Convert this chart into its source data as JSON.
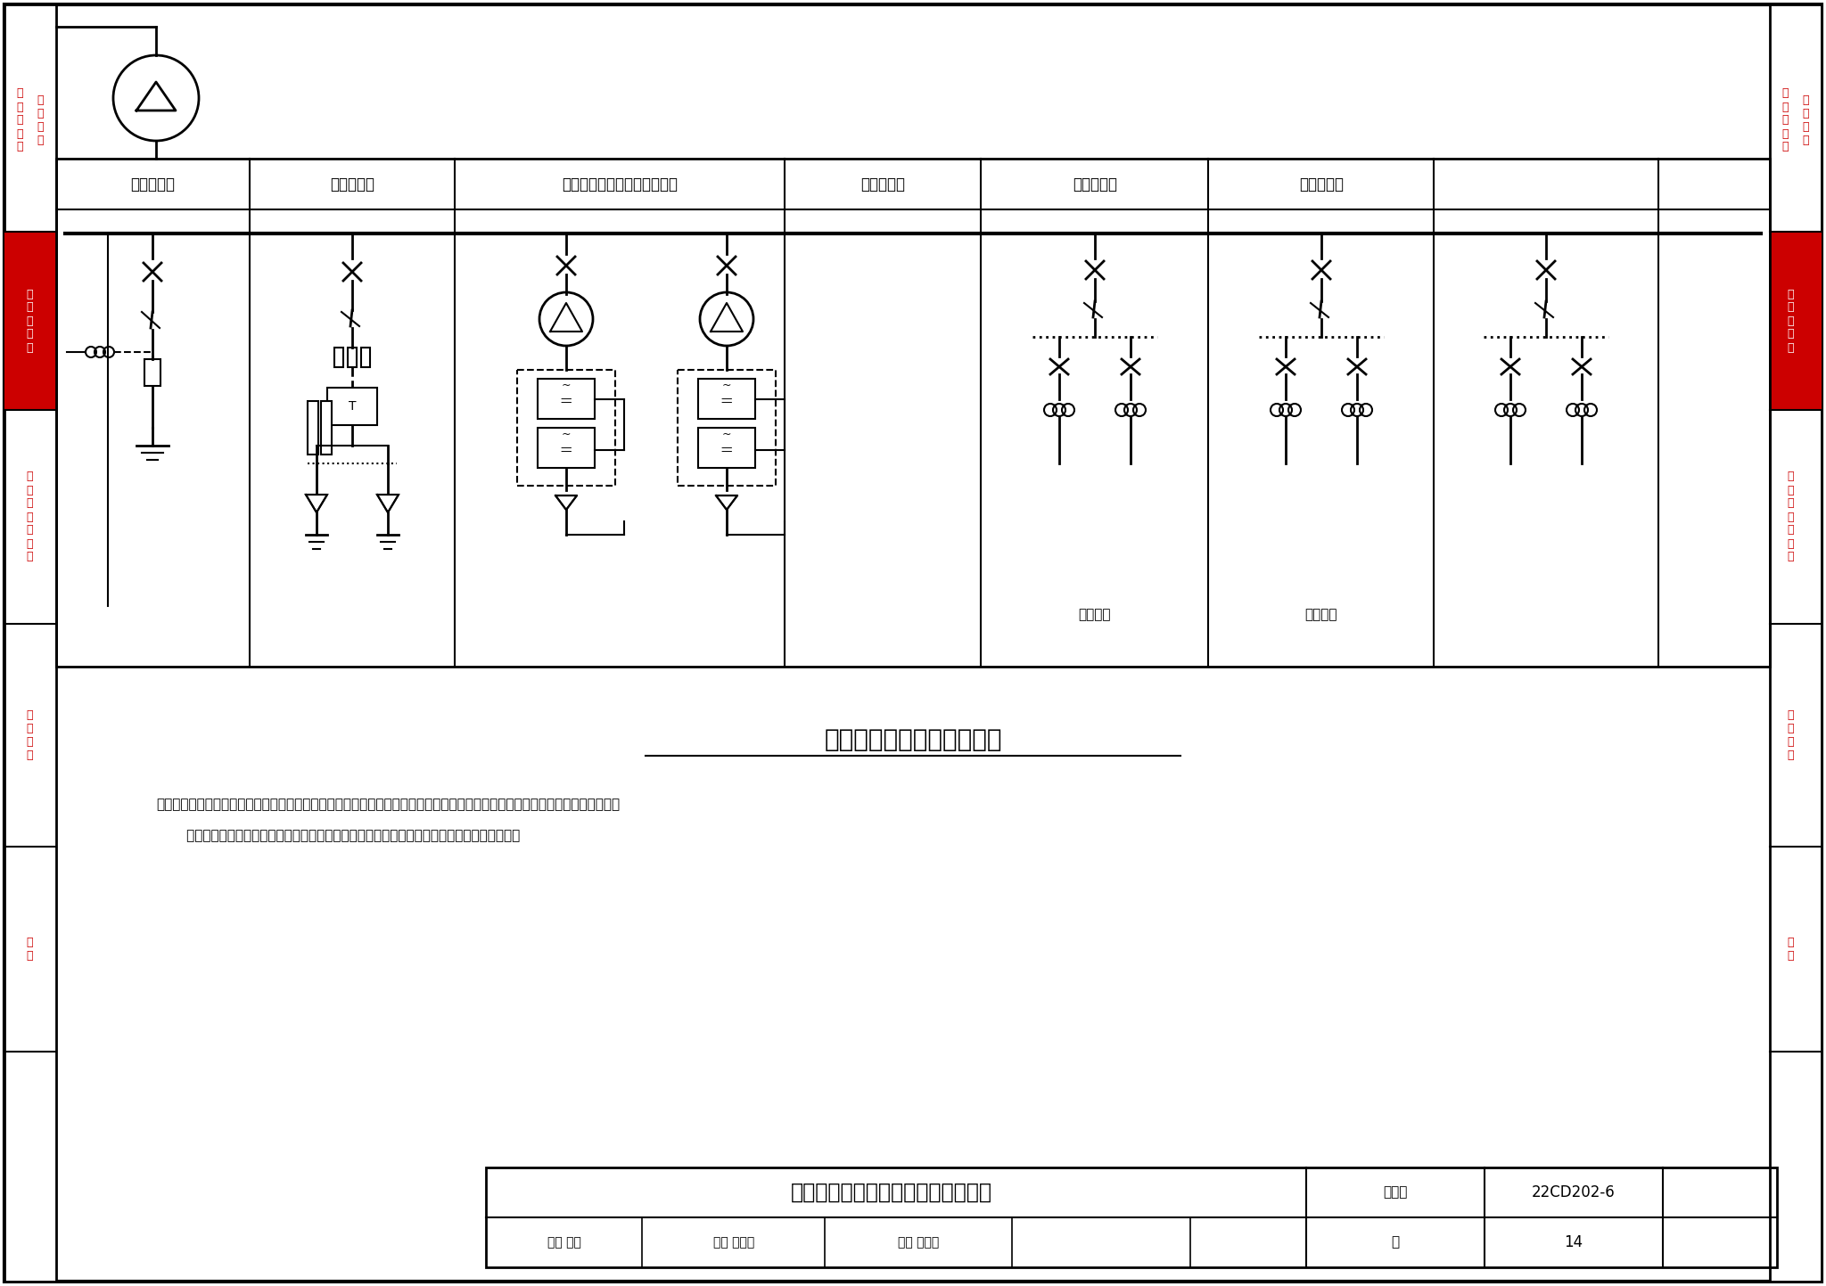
{
  "title": "集中式补偿电压暂降系统图",
  "footer_title": "飞轮储能型电压暂降治理典型系统图",
  "figure_number": "22CD202-6",
  "page": "14",
  "note_line1": "注：根据敏感负荷的分布情况及供配电系统的状况，飞轮储能型动态电压恢复装置可采用集中式补偿方案，一般用于敏感负荷比较",
  "note_line2": "       集中的情况，如敏感负荷通过同一馈线或同一母线供电时，可在馈线或母线侧进行集中补偿。",
  "panel_labels": [
    "低压进线柜",
    "电容补偿柜",
    "飞轮储能型动态电压恢复装置",
    "旁路开关柜",
    "低压馈线柜",
    "低压馈线柜"
  ],
  "sensitive_load": "敏感负荷",
  "bg_color": "#ffffff",
  "red_color": "#cc0000",
  "sidebar_red": "#cc0000",
  "footer_review": "审核 孙兰",
  "footer_check": "校对 张先玉",
  "footer_design": "设计 张凤莲",
  "footer_page_label": "页",
  "label_1a": "工\n作\n原\n理\n和",
  "label_1b": "基\n本\n构\n成",
  "label_2": "典\n型\n系\n统\n图",
  "label_3": "拓\n扑\n图\n与\n接\n线\n图",
  "label_4": "安\n装\n要\n求",
  "label_5": "案\n例"
}
